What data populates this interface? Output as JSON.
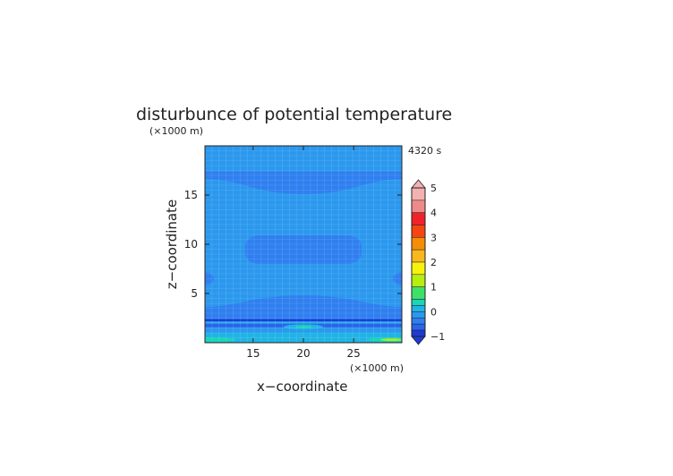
{
  "chart_data": {
    "type": "heatmap",
    "title": "disturbunce of potential temperature",
    "time_label": "4320 s",
    "xlabel": "x−coordinate",
    "ylabel": "z−coordinate",
    "x_unit": "(×1000 m)",
    "y_unit": "(×1000 m)",
    "xlim": [
      10.2,
      29.8
    ],
    "ylim": [
      0,
      20
    ],
    "xticks": [
      "15",
      "20",
      "25"
    ],
    "xtick_values": [
      15,
      20,
      25
    ],
    "yticks": [
      "5",
      "10",
      "15"
    ],
    "ytick_values": [
      5,
      10,
      15
    ],
    "grid": true,
    "colorbar": {
      "range": [
        -1,
        5
      ],
      "tick_labels": [
        "5",
        "4",
        "3",
        "2",
        "1",
        "0",
        "−1"
      ],
      "tick_values": [
        5,
        4,
        3,
        2,
        1,
        0,
        -1
      ],
      "levels": [
        {
          "min": 4.5,
          "max": 5.0,
          "color": "#f4b1b1"
        },
        {
          "min": 4.0,
          "max": 4.5,
          "color": "#ef8a8a"
        },
        {
          "min": 3.5,
          "max": 4.0,
          "color": "#f0222a"
        },
        {
          "min": 3.0,
          "max": 3.5,
          "color": "#f64510"
        },
        {
          "min": 2.5,
          "max": 3.0,
          "color": "#f48d08"
        },
        {
          "min": 2.0,
          "max": 2.5,
          "color": "#f8b81c"
        },
        {
          "min": 1.5,
          "max": 2.0,
          "color": "#f6f20e"
        },
        {
          "min": 1.0,
          "max": 1.5,
          "color": "#b6ee10"
        },
        {
          "min": 0.5,
          "max": 1.0,
          "color": "#3fe06a"
        },
        {
          "min": 0.25,
          "max": 0.5,
          "color": "#19d6b4"
        },
        {
          "min": 0.0,
          "max": 0.25,
          "color": "#20b4e6"
        },
        {
          "min": -0.25,
          "max": 0.0,
          "color": "#2b98ee"
        },
        {
          "min": -0.5,
          "max": -0.25,
          "color": "#2f7ff0"
        },
        {
          "min": -0.75,
          "max": -0.5,
          "color": "#2b64ec"
        },
        {
          "min": -1.0,
          "max": -0.75,
          "color": "#1e3ad6"
        }
      ]
    },
    "field_colors": {
      "background": "#2b98ee",
      "negative": "#2f7ff0",
      "strong_negative": "#2b64ec",
      "deep_negative": "#1e3ad6",
      "positive": "#20b4e6",
      "warm": "#19d6b4",
      "hot": "#b6ee10"
    }
  }
}
